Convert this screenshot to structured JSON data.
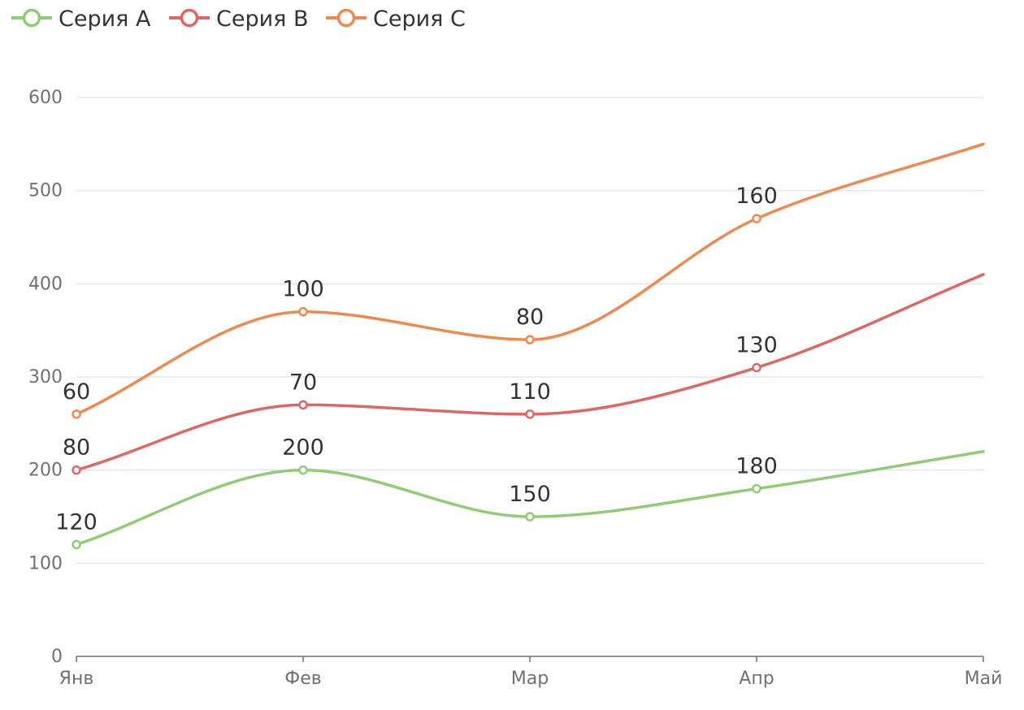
{
  "chart_data": {
    "type": "line",
    "stacked": true,
    "smooth": true,
    "categories": [
      "Янв",
      "Фев",
      "Мар",
      "Апр",
      "Май"
    ],
    "ylim": [
      0,
      600
    ],
    "yticks": [
      0,
      100,
      200,
      300,
      400,
      500,
      600
    ],
    "grid": true,
    "legend": "top-left",
    "series": [
      {
        "name": "Серия A",
        "color": "#91cc75",
        "values": [
          120,
          200,
          150,
          180,
          220
        ],
        "labels": [
          "120",
          "200",
          "150",
          "180",
          null
        ]
      },
      {
        "name": "Серия B",
        "color": "#e06666",
        "values": [
          80,
          70,
          110,
          130,
          190
        ],
        "labels": [
          "80",
          "70",
          "110",
          "130",
          null
        ]
      },
      {
        "name": "Серия C",
        "color": "#f0894f",
        "values": [
          60,
          100,
          80,
          160,
          140
        ],
        "labels": [
          "60",
          "100",
          "80",
          "160",
          null
        ]
      }
    ]
  }
}
